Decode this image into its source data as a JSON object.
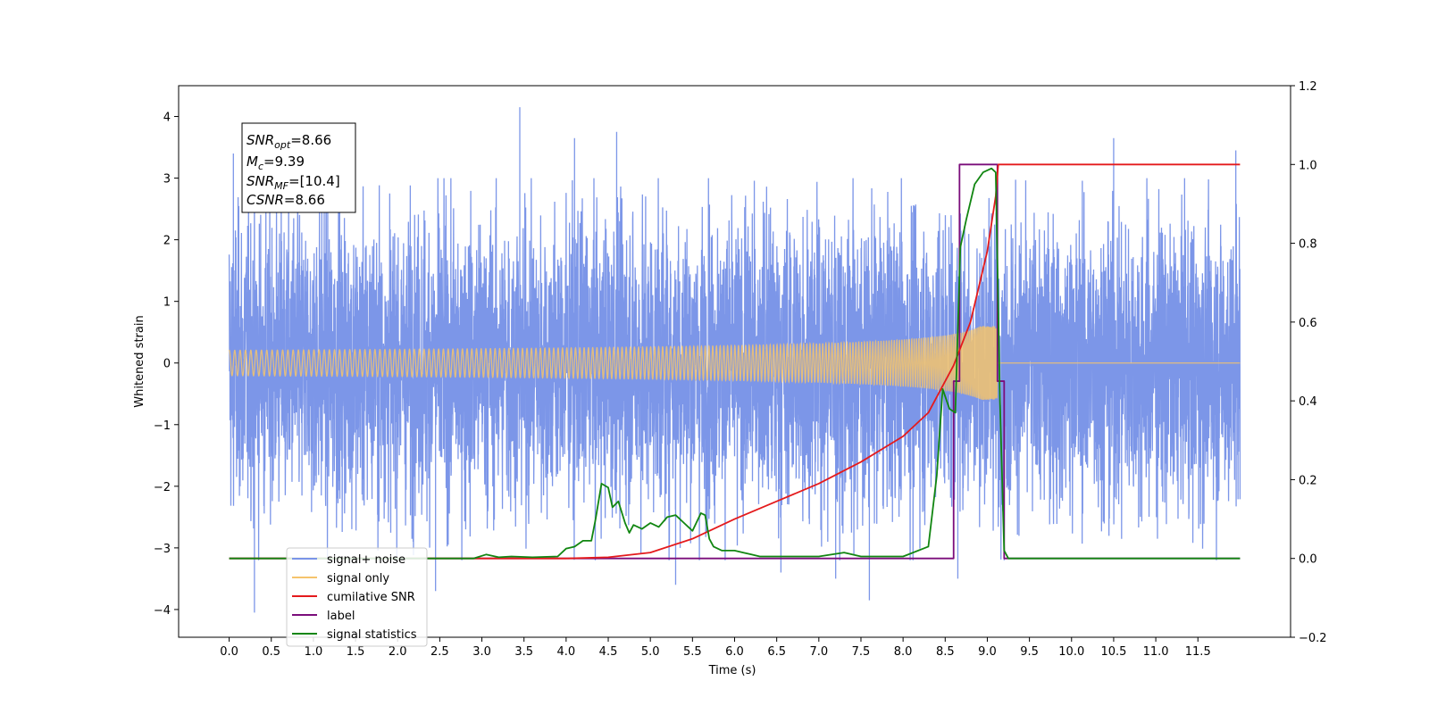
{
  "chart_data": {
    "type": "line",
    "xlabel": "Time (s)",
    "ylabel": "Whitened strain",
    "xlim": [
      -0.6,
      12.6
    ],
    "ylim": [
      -4.45,
      4.5
    ],
    "y2lim": [
      -0.2,
      1.2
    ],
    "xticks": [
      "0.0",
      "0.5",
      "1.0",
      "1.5",
      "2.0",
      "2.5",
      "3.0",
      "3.5",
      "4.0",
      "4.5",
      "5.0",
      "5.5",
      "6.0",
      "6.5",
      "7.0",
      "7.5",
      "8.0",
      "8.5",
      "9.0",
      "9.5",
      "10.0",
      "10.5",
      "11.0",
      "11.5"
    ],
    "yticks": [
      "4",
      "3",
      "2",
      "1",
      "0",
      "−1",
      "−2",
      "−3",
      "−4"
    ],
    "y2ticks": [
      "1.2",
      "1.0",
      "0.8",
      "0.6",
      "0.4",
      "0.2",
      "0.0",
      "−0.2"
    ],
    "grid": false,
    "legend_position": "lower-left",
    "annotation": {
      "snr_opt": {
        "name": "SNR",
        "sub": "opt",
        "value": "=8.66"
      },
      "mc": {
        "name": "M",
        "sub": "c",
        "value": "=9.39"
      },
      "snr_mf": {
        "name": "SNR",
        "sub": "MF",
        "value": "=[10.4]"
      },
      "csnr": {
        "name": "CSNR",
        "value": "=8.66"
      }
    },
    "series": [
      {
        "name": "signal+ noise",
        "color": "#7994e8",
        "axis": "left",
        "duration": [
          0.0,
          12.0
        ],
        "typical_amplitude": 2.3,
        "extreme_peaks": [
          {
            "x": 0.05,
            "y": 3.4
          },
          {
            "x": 0.3,
            "y": -4.05
          },
          {
            "x": 1.1,
            "y": 3.45
          },
          {
            "x": 2.45,
            "y": -3.7
          },
          {
            "x": 3.45,
            "y": 4.15
          },
          {
            "x": 4.1,
            "y": 3.65
          },
          {
            "x": 4.6,
            "y": 3.75
          },
          {
            "x": 5.3,
            "y": -3.6
          },
          {
            "x": 6.55,
            "y": -3.4
          },
          {
            "x": 7.2,
            "y": -3.5
          },
          {
            "x": 7.6,
            "y": -3.85
          },
          {
            "x": 8.65,
            "y": -3.5
          },
          {
            "x": 9.2,
            "y": -3.2
          },
          {
            "x": 10.5,
            "y": 3.65
          },
          {
            "x": 11.95,
            "y": 3.45
          }
        ]
      },
      {
        "name": "signal only",
        "color": "#f5c46c",
        "axis": "left",
        "chirp": {
          "start": 0.0,
          "merger": 9.12,
          "end": 12.0,
          "peak_amplitude": 0.6
        }
      },
      {
        "name": "cumilative SNR",
        "color": "#e41a1c",
        "axis": "right",
        "x": [
          0,
          4.0,
          4.5,
          5.0,
          5.5,
          6.0,
          6.5,
          7.0,
          7.5,
          8.0,
          8.3,
          8.6,
          8.8,
          9.0,
          9.1,
          9.13,
          12.0
        ],
        "y": [
          0,
          0,
          0.003,
          0.015,
          0.05,
          0.1,
          0.145,
          0.19,
          0.245,
          0.31,
          0.37,
          0.49,
          0.6,
          0.78,
          0.92,
          1.0,
          1.0
        ]
      },
      {
        "name": "label",
        "color": "#7b0d7b",
        "axis": "right",
        "x": [
          0,
          8.6,
          8.6,
          8.67,
          8.67,
          9.12,
          9.12,
          9.2,
          9.2,
          12.0
        ],
        "y": [
          0,
          0,
          0.45,
          0.45,
          1.0,
          1.0,
          0.45,
          0.45,
          0,
          0
        ]
      },
      {
        "name": "signal statistics",
        "color": "#118611",
        "axis": "right",
        "x": [
          0,
          2.9,
          3.05,
          3.2,
          3.35,
          3.6,
          3.9,
          4.0,
          4.1,
          4.2,
          4.3,
          4.35,
          4.42,
          4.5,
          4.55,
          4.62,
          4.7,
          4.75,
          4.8,
          4.9,
          5.0,
          5.1,
          5.2,
          5.3,
          5.4,
          5.5,
          5.6,
          5.65,
          5.7,
          5.75,
          5.85,
          6.0,
          6.1,
          6.2,
          6.3,
          6.5,
          7.0,
          7.3,
          7.5,
          8.0,
          8.3,
          8.4,
          8.47,
          8.55,
          8.62,
          8.68,
          8.75,
          8.85,
          8.95,
          9.05,
          9.1,
          9.15,
          9.2,
          9.25,
          12.0
        ],
        "y": [
          0,
          0,
          0.01,
          0.003,
          0.005,
          0.003,
          0.005,
          0.025,
          0.03,
          0.045,
          0.045,
          0.1,
          0.19,
          0.18,
          0.13,
          0.145,
          0.09,
          0.065,
          0.085,
          0.075,
          0.09,
          0.08,
          0.105,
          0.11,
          0.09,
          0.07,
          0.115,
          0.11,
          0.05,
          0.03,
          0.02,
          0.02,
          0.015,
          0.01,
          0.005,
          0.005,
          0.005,
          0.015,
          0.005,
          0.005,
          0.03,
          0.21,
          0.43,
          0.38,
          0.37,
          0.79,
          0.86,
          0.95,
          0.98,
          0.99,
          0.98,
          0.4,
          0.02,
          0.0,
          0.0
        ]
      }
    ]
  }
}
